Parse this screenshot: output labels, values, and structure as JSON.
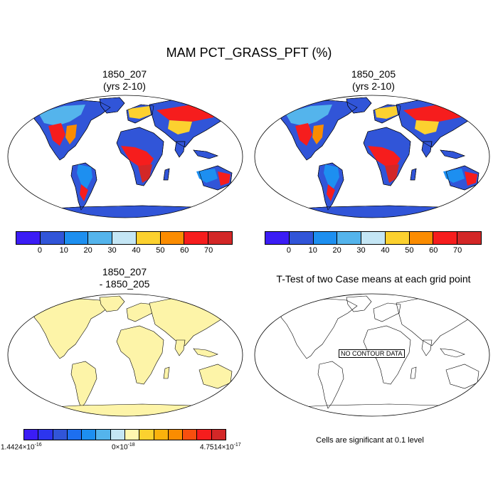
{
  "figure": {
    "title": "MAM PCT_GRASS_PFT (%)"
  },
  "panels": {
    "top_left": {
      "title_line1": "1850_207",
      "title_line2": "(yrs 2-10)"
    },
    "top_right": {
      "title_line1": "1850_205",
      "title_line2": "(yrs 2-10)"
    },
    "bottom_left": {
      "title_line1": "1850_207",
      "title_line2": "- 1850_205"
    },
    "bottom_right": {
      "title": "T-Test of two Case means at each grid point",
      "no_data_label": "NO CONTOUR DATA",
      "note": "Cells are significant at 0.1 level"
    }
  },
  "colorbar_abs": {
    "colors": [
      "#3b1cf5",
      "#3155d8",
      "#1d8ff0",
      "#54b4ec",
      "#c4e6f5",
      "#fcd12f",
      "#fb8c00",
      "#f61d1d",
      "#d32727"
    ],
    "labels": [
      "0",
      "10",
      "20",
      "30",
      "40",
      "50",
      "60",
      "70"
    ]
  },
  "colorbar_diff": {
    "colors": [
      "#3b1cf5",
      "#2c35ee",
      "#3155d8",
      "#1d6ff0",
      "#1d8ff0",
      "#54b4ec",
      "#c4e6f5",
      "#fff7b0",
      "#fcd12f",
      "#fbb20c",
      "#fb8c00",
      "#f84f0e",
      "#f61d1d",
      "#d32727"
    ],
    "label_left": "1.4424×10",
    "label_left_exp": "-16",
    "label_mid": "0×10",
    "label_mid_exp": "-18",
    "label_right": "4.7514×10",
    "label_right_exp": "-17"
  },
  "map_colors": {
    "ocean": "#ffffff",
    "land_diff": "#fdf4a8",
    "antarctica_abs": "#3155d8"
  }
}
